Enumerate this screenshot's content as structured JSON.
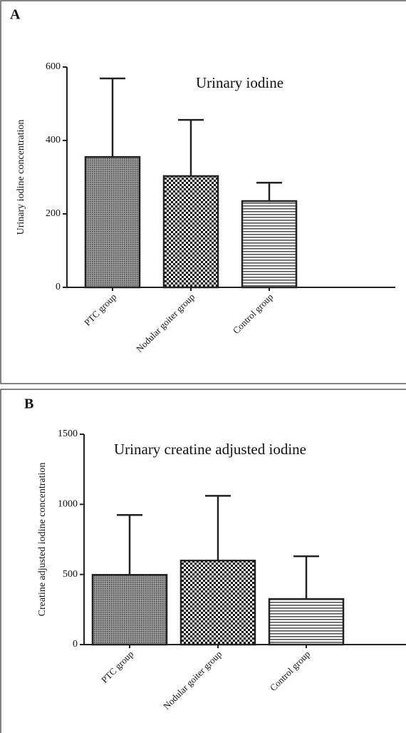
{
  "chart_data": [
    {
      "type": "bar",
      "panel": "A",
      "title": "Urinary iodine",
      "y_label": "Urinary iodine concentration",
      "categories": [
        "PTC group",
        "Nodular goiter group",
        "Control group"
      ],
      "values": [
        355,
        303,
        235
      ],
      "errors": [
        214,
        153,
        50
      ],
      "ylim": [
        0,
        600
      ],
      "yticks": [
        0,
        200,
        400,
        600
      ]
    },
    {
      "type": "bar",
      "panel": "B",
      "title": "Urinary creatine adjusted iodine",
      "y_label": "Creatine adjusted iodine concentration",
      "categories": [
        "PTC group",
        "Nodular goiter group",
        "Control group"
      ],
      "values": [
        497,
        599,
        325
      ],
      "errors": [
        427,
        462,
        305
      ],
      "ylim": [
        0,
        1500
      ],
      "yticks": [
        0,
        500,
        1000,
        1500
      ]
    }
  ]
}
